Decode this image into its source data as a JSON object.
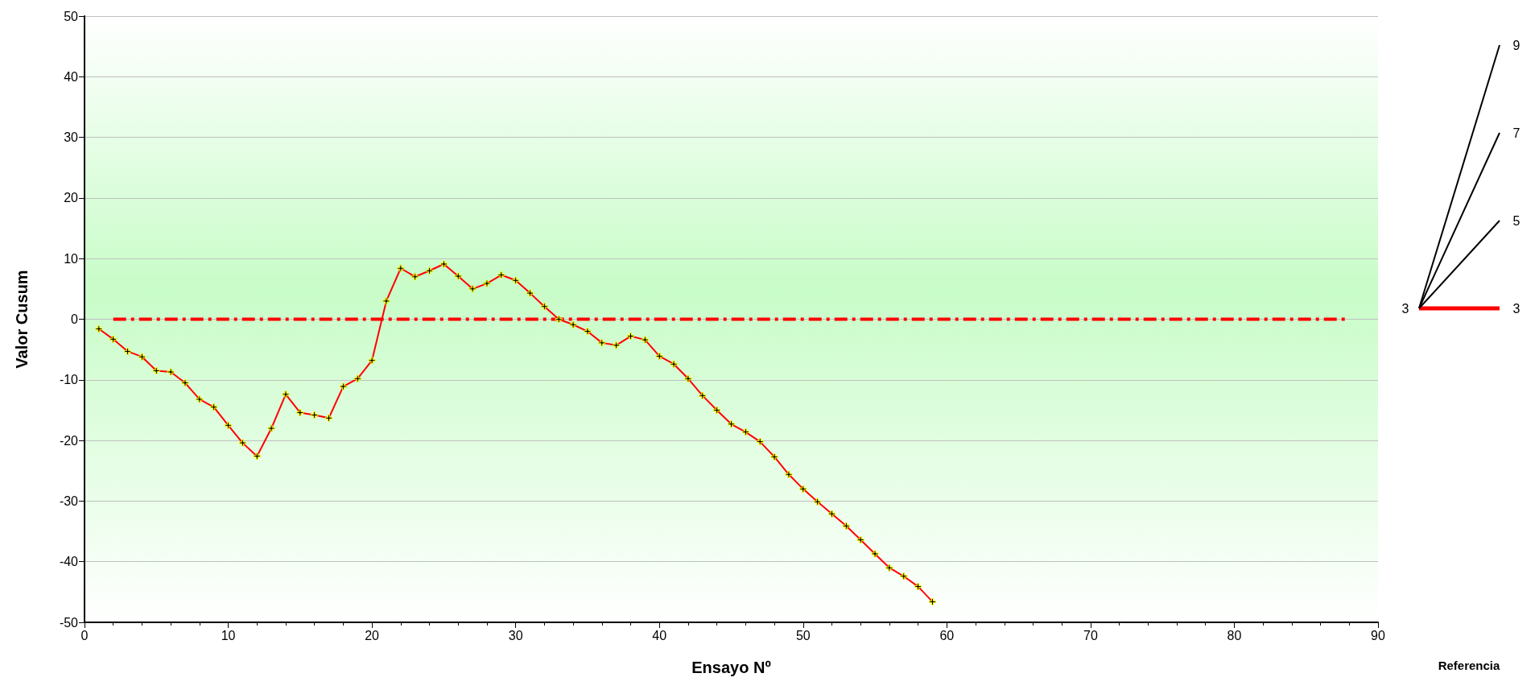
{
  "chart_data": {
    "type": "line",
    "xlabel": "Ensayo Nº",
    "ylabel": "Valor Cusum",
    "xlim": [
      0,
      90
    ],
    "xticks": [
      0,
      10,
      20,
      30,
      40,
      50,
      60,
      70,
      80,
      90
    ],
    "ylim": [
      -50,
      50
    ],
    "yticks": [
      -50,
      -40,
      -30,
      -20,
      -10,
      0,
      10,
      20,
      30,
      40,
      50
    ],
    "grid": "y",
    "marker": "cross",
    "line_style": "solid",
    "x": [
      1,
      2,
      3,
      4,
      5,
      6,
      7,
      8,
      9,
      10,
      11,
      12,
      13,
      14,
      15,
      16,
      17,
      18,
      19,
      20,
      21,
      22,
      23,
      24,
      25,
      26,
      27,
      28,
      29,
      30,
      31,
      32,
      33,
      34,
      35,
      36,
      37,
      38,
      39,
      40,
      41,
      42,
      43,
      44,
      45,
      46,
      47,
      48,
      49,
      50,
      51,
      52,
      53,
      54,
      55,
      56,
      57,
      58,
      59
    ],
    "series": [
      {
        "color": "#ff0000",
        "values": [
          -1.6,
          -3.3,
          -5.3,
          -6.2,
          -8.5,
          -8.7,
          -10.5,
          -13.2,
          -14.5,
          -17.5,
          -20.4,
          -22.6,
          -18,
          -12.4,
          -15.4,
          -15.8,
          -16.3,
          -11.1,
          -9.8,
          -6.8,
          3,
          8.4,
          7,
          8,
          9.1,
          7.1,
          5,
          5.9,
          7.3,
          6.4,
          4.3,
          2.1,
          0,
          -0.9,
          -2,
          -3.9,
          -4.3,
          -2.8,
          -3.4,
          -6.1,
          -7.4,
          -9.8,
          -12.6,
          -15,
          -17.3,
          -18.6,
          -20.2,
          -22.7,
          -25.6,
          -28,
          -30.1,
          -32.1,
          -34.1,
          -36.4,
          -38.7,
          -41,
          -42.4,
          -44.1,
          -46.6
        ]
      },
      {
        "type": "line",
        "color": "#ff0000",
        "x": [
          2,
          88
        ],
        "values": [
          0,
          0
        ],
        "marker": "none",
        "line_style": "dashed"
      }
    ],
    "annotations": [
      "3",
      "3",
      "5",
      "7",
      "9",
      "Referencia"
    ]
  }
}
